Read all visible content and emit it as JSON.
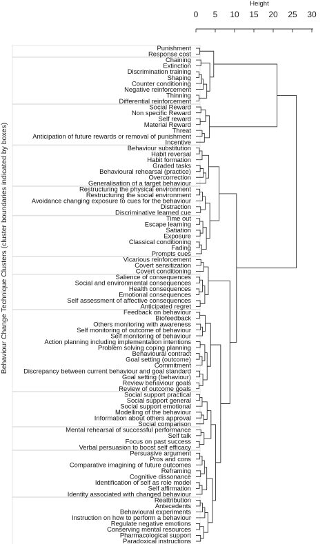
{
  "chart_data": {
    "type": "dendrogram",
    "xlabel": "Height",
    "ylabel": "Behaviour Change Technique Clusters (cluster boundaries indicated by boxes)",
    "xticks": [
      0,
      5,
      10,
      15,
      20,
      25,
      30
    ],
    "xlim": [
      0,
      30
    ],
    "leaves": [
      "Punishment",
      "Response cost",
      "Chaining",
      "Extinction",
      "Discrimination training",
      "Shaping",
      "Counter conditioning",
      "Negative reinforcement",
      "Thinning",
      "Differential reinforcement",
      "Social Reward",
      "Non specific Reward",
      "Self reward",
      "Material Reward",
      "Threat",
      "Anticipation of future rewards or removal of punishment",
      "Incentive",
      "Behaviour substitution",
      "Habit reversal",
      "Habit formation",
      "Graded tasks",
      "Behavioural rehearsal (practice)",
      "Overcorrection",
      "Generalisation of a target behaviour",
      "Restructuring the physical  environment",
      "Restructuring the social environment",
      "Avoidance changing exposure to cues for the behaviour",
      "Distraction",
      "Discriminative learned cue",
      "Time out",
      "Escape learning",
      "Satiation",
      "Exposure",
      "Classical conditioning",
      "Fading",
      "Prompts cues",
      "Vicarious reinforcement",
      "Covert sensitization",
      "Covert conditioning",
      "Salience of consequences",
      "Social and environmental consequences",
      "Health consequences",
      "Emotional consequences",
      "Self assessment of affective consequences",
      "Anticipated regret",
      "Feedback on behaviour",
      "Biofeedback",
      "Others monitoring with awareness",
      "Self monitoring of outcome of behaviour",
      "Self monitoring of behaviour",
      "Action planning  including implementation intentions",
      "Problem solving coping planning",
      "Behavioural contract",
      "Goal setting (outcome)",
      "Commitment",
      "Discrepancy between current behaviour and goal standard",
      "Goal setting (behaviour)",
      "Review behaviour goals",
      "Review of outcome goals",
      "Social support  practical",
      "Social support  general",
      "Social support  emotional",
      "Modelling of the behaviour",
      "Information about others approval",
      "Social comparison",
      "Mental rehearsal of successful performance",
      "Self talk",
      "Focus on past success",
      "Verbal persuasion to boost self efficacy",
      "Persuasive argument",
      "Pros and cons",
      "Comparative imagining of future outcomes",
      "Reframing",
      "Cognitive dissonance",
      "Identification of self as role model",
      "Self affirmation",
      "Identity associated with changed behaviour",
      "Reattribution",
      "Antecedents",
      "Behavioural experiments",
      "Instruction on how to perform a behaviour",
      "Regulate negative emotions",
      "Conserving mental resources",
      "Pharmacological support",
      "Paradoxical instructions"
    ],
    "clusters": [
      {
        "start": 0,
        "end": 1
      },
      {
        "start": 2,
        "end": 9
      },
      {
        "start": 10,
        "end": 16
      },
      {
        "start": 17,
        "end": 23
      },
      {
        "start": 24,
        "end": 28
      },
      {
        "start": 29,
        "end": 35
      },
      {
        "start": 36,
        "end": 38
      },
      {
        "start": 39,
        "end": 44
      },
      {
        "start": 45,
        "end": 58
      },
      {
        "start": 59,
        "end": 64
      },
      {
        "start": 65,
        "end": 68
      },
      {
        "start": 69,
        "end": 76
      },
      {
        "start": 77,
        "end": 84
      }
    ],
    "merges": [
      {
        "children": [
          "L0",
          "L1"
        ],
        "height": 1.0
      },
      {
        "children": [
          "L2",
          "L3"
        ],
        "height": 1.3
      },
      {
        "children": [
          "L4",
          "L5"
        ],
        "height": 0.8
      },
      {
        "children": [
          2,
          "L6"
        ],
        "height": 1.5
      },
      {
        "children": [
          3,
          "L7"
        ],
        "height": 1.9
      },
      {
        "children": [
          "L8",
          "L9"
        ],
        "height": 0.8
      },
      {
        "children": [
          4,
          5
        ],
        "height": 2.8
      },
      {
        "children": [
          1,
          6
        ],
        "height": 3.6
      },
      {
        "children": [
          0,
          7
        ],
        "height": 4.6
      },
      {
        "children": [
          "L10",
          "L11"
        ],
        "height": 1.3
      },
      {
        "children": [
          "L12",
          "L13"
        ],
        "height": 1.1
      },
      {
        "children": [
          9,
          10
        ],
        "height": 2.5
      },
      {
        "children": [
          "L14",
          "L15"
        ],
        "height": 1.6
      },
      {
        "children": [
          12,
          "L16"
        ],
        "height": 2.2
      },
      {
        "children": [
          11,
          13
        ],
        "height": 3.5
      },
      {
        "children": [
          8,
          14
        ],
        "height": 21.0
      },
      {
        "children": [
          "L17",
          "L18"
        ],
        "height": 0.9
      },
      {
        "children": [
          16,
          "L19"
        ],
        "height": 1.6
      },
      {
        "children": [
          "L20",
          "L21"
        ],
        "height": 1.1
      },
      {
        "children": [
          18,
          "L22"
        ],
        "height": 1.9
      },
      {
        "children": [
          19,
          "L23"
        ],
        "height": 2.6
      },
      {
        "children": [
          17,
          20
        ],
        "height": 3.3
      },
      {
        "children": [
          "L24",
          "L25"
        ],
        "height": 1.0
      },
      {
        "children": [
          22,
          "L26"
        ],
        "height": 1.7
      },
      {
        "children": [
          "L27",
          "L28"
        ],
        "height": 1.2
      },
      {
        "children": [
          23,
          24
        ],
        "height": 2.4
      },
      {
        "children": [
          "L29",
          "L30"
        ],
        "height": 1.0
      },
      {
        "children": [
          "L31",
          "L32"
        ],
        "height": 1.1
      },
      {
        "children": [
          26,
          27
        ],
        "height": 1.8
      },
      {
        "children": [
          "L33",
          "L34"
        ],
        "height": 0.9
      },
      {
        "children": [
          29,
          "L35"
        ],
        "height": 1.5
      },
      {
        "children": [
          28,
          30
        ],
        "height": 2.7
      },
      {
        "children": [
          25,
          31
        ],
        "height": 3.6
      },
      {
        "children": [
          21,
          32
        ],
        "height": 6.0
      },
      {
        "children": [
          "L36",
          "L37"
        ],
        "height": 1.3
      },
      {
        "children": [
          34,
          "L38"
        ],
        "height": 2.0
      },
      {
        "children": [
          "L39",
          "L40"
        ],
        "height": 1.0
      },
      {
        "children": [
          "L41",
          "L42"
        ],
        "height": 0.8
      },
      {
        "children": [
          36,
          37
        ],
        "height": 1.7
      },
      {
        "children": [
          "L43",
          "L44"
        ],
        "height": 1.1
      },
      {
        "children": [
          38,
          39
        ],
        "height": 2.3
      },
      {
        "children": [
          35,
          40
        ],
        "height": 3.2
      },
      {
        "children": [
          "L45",
          "L46"
        ],
        "height": 1.0
      },
      {
        "children": [
          "L47",
          "L48"
        ],
        "height": 1.2
      },
      {
        "children": [
          43,
          "L49"
        ],
        "height": 1.7
      },
      {
        "children": [
          42,
          44
        ],
        "height": 2.4
      },
      {
        "children": [
          "L50",
          "L51"
        ],
        "height": 1.1
      },
      {
        "children": [
          "L52",
          "L53"
        ],
        "height": 0.9
      },
      {
        "children": [
          47,
          "L54"
        ],
        "height": 1.6
      },
      {
        "children": [
          46,
          48
        ],
        "height": 2.3
      },
      {
        "children": [
          "L55",
          "L56"
        ],
        "height": 1.0
      },
      {
        "children": [
          "L57",
          "L58"
        ],
        "height": 0.8
      },
      {
        "children": [
          50,
          51
        ],
        "height": 1.8
      },
      {
        "children": [
          49,
          52
        ],
        "height": 2.9
      },
      {
        "children": [
          45,
          53
        ],
        "height": 3.8
      },
      {
        "children": [
          "L59",
          "L60"
        ],
        "height": 1.0
      },
      {
        "children": [
          55,
          "L61"
        ],
        "height": 1.6
      },
      {
        "children": [
          "L62",
          "L63"
        ],
        "height": 1.4
      },
      {
        "children": [
          57,
          "L64"
        ],
        "height": 2.0
      },
      {
        "children": [
          56,
          58
        ],
        "height": 2.9
      },
      {
        "children": [
          "L65",
          "L66"
        ],
        "height": 1.3
      },
      {
        "children": [
          "L67",
          "L68"
        ],
        "height": 0.9
      },
      {
        "children": [
          60,
          61
        ],
        "height": 2.1
      },
      {
        "children": [
          59,
          62
        ],
        "height": 3.9
      },
      {
        "children": [
          "L69",
          "L70"
        ],
        "height": 1.0
      },
      {
        "children": [
          64,
          "L71"
        ],
        "height": 1.6
      },
      {
        "children": [
          "L72",
          "L73"
        ],
        "height": 1.2
      },
      {
        "children": [
          65,
          66
        ],
        "height": 2.2
      },
      {
        "children": [
          "L74",
          "L75"
        ],
        "height": 0.9
      },
      {
        "children": [
          68,
          "L76"
        ],
        "height": 1.6
      },
      {
        "children": [
          67,
          69
        ],
        "height": 2.8
      },
      {
        "children": [
          "L77",
          "L78"
        ],
        "height": 1.1
      },
      {
        "children": [
          71,
          "L79"
        ],
        "height": 1.7
      },
      {
        "children": [
          72,
          "L80"
        ],
        "height": 2.3
      },
      {
        "children": [
          "L81",
          "L82"
        ],
        "height": 1.0
      },
      {
        "children": [
          "L83",
          "L84"
        ],
        "height": 1.2
      },
      {
        "children": [
          74,
          75
        ],
        "height": 2.0
      },
      {
        "children": [
          73,
          76
        ],
        "height": 3.1
      },
      {
        "children": [
          70,
          77
        ],
        "height": 4.3
      },
      {
        "children": [
          63,
          78
        ],
        "height": 5.1
      },
      {
        "children": [
          54,
          79
        ],
        "height": 6.4
      },
      {
        "children": [
          41,
          80
        ],
        "height": 8.8
      },
      {
        "children": [
          33,
          81
        ],
        "height": 10.5
      },
      {
        "children": [
          15,
          82
        ],
        "height": 26.0
      }
    ]
  }
}
